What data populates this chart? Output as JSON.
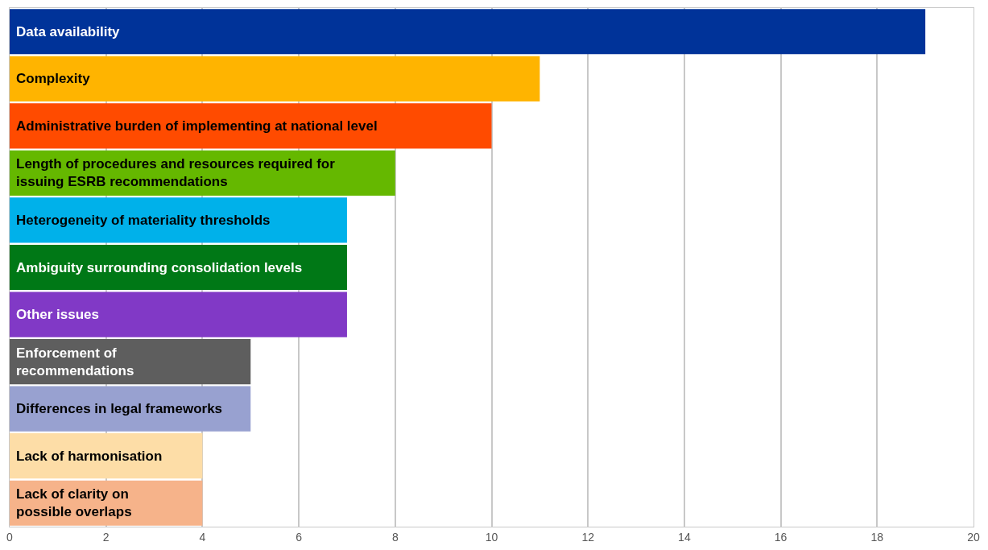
{
  "chart_data": {
    "type": "bar",
    "orientation": "horizontal",
    "categories": [
      "Data availability",
      "Complexity",
      "Administrative burden of implementing at national level",
      "Length of procedures and resources required for\nissuing ESRB recommendations",
      "Heterogeneity of materiality thresholds",
      "Ambiguity surrounding consolidation levels",
      "Other issues",
      "Enforcement of\nrecommendations",
      "Differences in legal frameworks",
      "Lack of harmonisation",
      "Lack of clarity on\npossible overlaps"
    ],
    "values": [
      19,
      11,
      10,
      8,
      7,
      7,
      7,
      5,
      5,
      4,
      4
    ],
    "colors": [
      "#003399",
      "#ffb400",
      "#ff4b00",
      "#65b800",
      "#00b1ea",
      "#007816",
      "#8139c6",
      "#5e5e5e",
      "#98a1d0",
      "#fddda7",
      "#f6b38a"
    ],
    "xlim": [
      0,
      20
    ],
    "xticks": [
      0,
      2,
      4,
      6,
      8,
      10,
      12,
      14,
      16,
      18,
      20
    ],
    "grid": "x"
  }
}
